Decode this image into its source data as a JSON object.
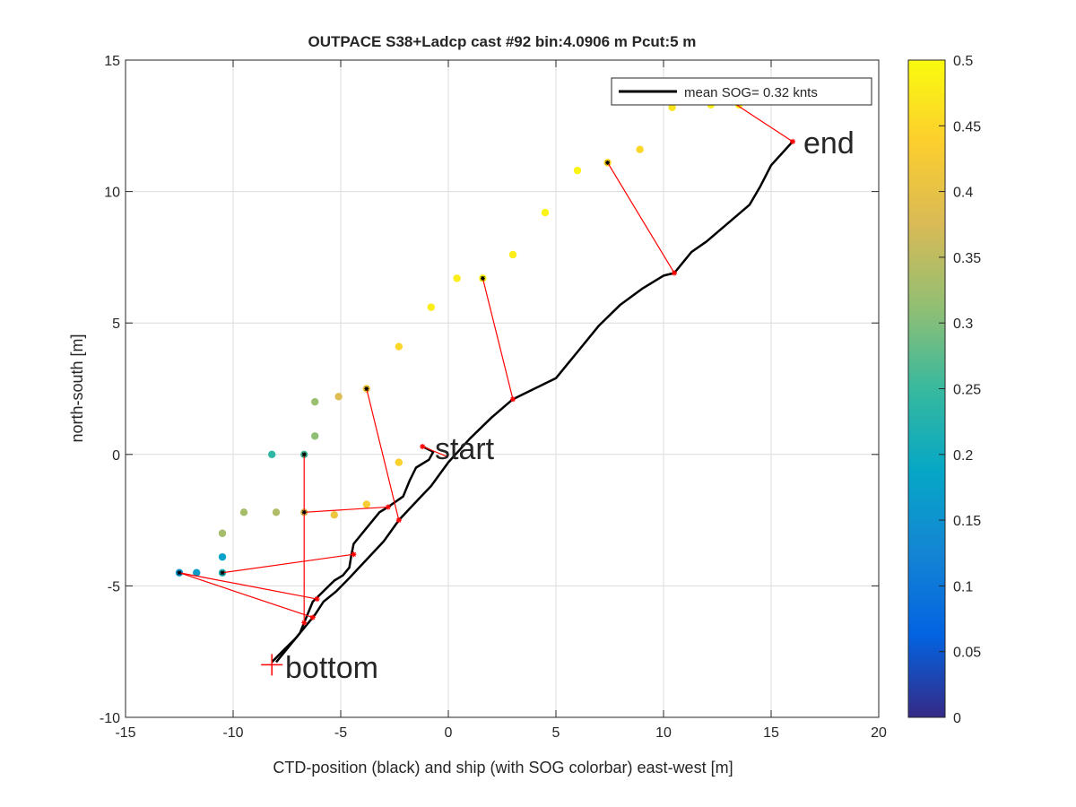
{
  "chart_data": {
    "type": "scatter",
    "title": "OUTPACE S38+Ladcp cast #92 bin:4.0906 m  Pcut:5 m",
    "xlabel": "CTD-position (black) and ship (with SOG colorbar) east-west [m]",
    "ylabel": "north-south [m]",
    "xlim": [
      -15,
      20
    ],
    "ylim": [
      -10,
      15
    ],
    "xticks": [
      "-15",
      "-10",
      "-5",
      "0",
      "5",
      "10",
      "15",
      "20"
    ],
    "yticks": [
      "-10",
      "-5",
      "0",
      "5",
      "10",
      "15"
    ],
    "grid": true,
    "legend": {
      "entries": [
        "mean SOG=  0.32 knts"
      ],
      "placement": "top-right"
    },
    "annotations": [
      {
        "text": "end",
        "x": 16.0,
        "y": 11.9
      },
      {
        "text": "start",
        "x": -1.2,
        "y": 0.3
      },
      {
        "text": "bottom",
        "x": -8.2,
        "y": -8.0
      }
    ],
    "colorbar": {
      "range": [
        0,
        0.5
      ],
      "ticks": [
        "0",
        "0.05",
        "0.1",
        "0.15",
        "0.2",
        "0.25",
        "0.3",
        "0.35",
        "0.4",
        "0.45",
        "0.5"
      ],
      "colormap": [
        "#352a87",
        "#0363e1",
        "#1485d4",
        "#06a7c6",
        "#38b99e",
        "#92bf73",
        "#d9ba56",
        "#fcce2e",
        "#f9fb0e"
      ]
    },
    "ctd_track": [
      [
        -8.2,
        -7.9
      ],
      [
        -7.6,
        -7.4
      ],
      [
        -7.1,
        -7.0
      ],
      [
        -6.7,
        -6.6
      ],
      [
        -6.2,
        -6.1
      ],
      [
        -5.8,
        -5.6
      ],
      [
        -5.2,
        -5.2
      ],
      [
        -4.6,
        -4.7
      ],
      [
        -3.8,
        -4.0
      ],
      [
        -3.0,
        -3.3
      ],
      [
        -2.3,
        -2.5
      ],
      [
        -1.5,
        -1.8
      ],
      [
        -0.8,
        -1.2
      ],
      [
        0.0,
        -0.3
      ],
      [
        1.0,
        0.6
      ],
      [
        2.0,
        1.4
      ],
      [
        3.0,
        2.1
      ],
      [
        4.0,
        2.5
      ],
      [
        5.0,
        2.9
      ],
      [
        6.0,
        3.9
      ],
      [
        7.0,
        4.9
      ],
      [
        8.0,
        5.7
      ],
      [
        9.0,
        6.3
      ],
      [
        10.0,
        6.8
      ],
      [
        10.5,
        6.9
      ],
      [
        11.3,
        7.7
      ],
      [
        12.0,
        8.1
      ],
      [
        13.0,
        8.8
      ],
      [
        14.0,
        9.5
      ],
      [
        14.5,
        10.2
      ],
      [
        15.0,
        11.0
      ],
      [
        16.0,
        11.9
      ]
    ],
    "ctd_inner_track": [
      [
        -8.0,
        -7.9
      ],
      [
        -7.4,
        -7.3
      ],
      [
        -6.9,
        -6.8
      ],
      [
        -6.6,
        -6.2
      ],
      [
        -6.3,
        -5.6
      ],
      [
        -5.8,
        -5.2
      ],
      [
        -5.3,
        -4.8
      ],
      [
        -4.9,
        -4.6
      ],
      [
        -4.6,
        -4.3
      ],
      [
        -4.5,
        -3.8
      ],
      [
        -4.4,
        -3.4
      ],
      [
        -3.9,
        -2.9
      ],
      [
        -3.2,
        -2.2
      ],
      [
        -2.8,
        -2.0
      ],
      [
        -2.1,
        -1.6
      ],
      [
        -1.8,
        -1.0
      ],
      [
        -1.5,
        -0.5
      ],
      [
        -0.9,
        -0.2
      ],
      [
        -0.7,
        0.1
      ],
      [
        -1.2,
        0.3
      ]
    ],
    "ship_points": [
      {
        "x": -12.5,
        "y": -4.5,
        "sog": 0.15
      },
      {
        "x": -11.7,
        "y": -4.5,
        "sog": 0.17
      },
      {
        "x": -10.5,
        "y": -4.5,
        "sog": 0.22
      },
      {
        "x": -10.5,
        "y": -3.9,
        "sog": 0.18
      },
      {
        "x": -10.5,
        "y": -3.0,
        "sog": 0.33
      },
      {
        "x": -9.5,
        "y": -2.2,
        "sog": 0.33
      },
      {
        "x": -8.0,
        "y": -2.2,
        "sog": 0.34
      },
      {
        "x": -8.2,
        "y": 0.0,
        "sog": 0.24
      },
      {
        "x": -6.7,
        "y": 0.0,
        "sog": 0.26
      },
      {
        "x": -6.7,
        "y": -2.2,
        "sog": 0.38
      },
      {
        "x": -5.3,
        "y": -2.3,
        "sog": 0.41
      },
      {
        "x": -6.2,
        "y": 0.7,
        "sog": 0.31
      },
      {
        "x": -6.2,
        "y": 2.0,
        "sog": 0.32
      },
      {
        "x": -5.1,
        "y": 2.2,
        "sog": 0.38
      },
      {
        "x": -3.8,
        "y": 2.5,
        "sog": 0.42
      },
      {
        "x": -3.8,
        "y": -1.9,
        "sog": 0.43
      },
      {
        "x": -2.3,
        "y": -0.3,
        "sog": 0.44
      },
      {
        "x": -2.3,
        "y": 4.1,
        "sog": 0.45
      },
      {
        "x": -0.8,
        "y": 5.6,
        "sog": 0.48
      },
      {
        "x": 0.4,
        "y": 6.7,
        "sog": 0.48
      },
      {
        "x": 1.6,
        "y": 6.7,
        "sog": 0.49
      },
      {
        "x": 3.0,
        "y": 7.6,
        "sog": 0.48
      },
      {
        "x": 4.5,
        "y": 9.2,
        "sog": 0.49
      },
      {
        "x": 6.0,
        "y": 10.8,
        "sog": 0.49
      },
      {
        "x": 7.4,
        "y": 11.1,
        "sog": 0.45
      },
      {
        "x": 8.9,
        "y": 11.6,
        "sog": 0.45
      },
      {
        "x": 10.4,
        "y": 13.2,
        "sog": 0.47
      },
      {
        "x": 12.2,
        "y": 13.3,
        "sog": 0.48
      },
      {
        "x": 13.5,
        "y": 13.3,
        "sog": 0.5
      }
    ],
    "ship_markers": [
      [
        -12.5,
        -4.5
      ],
      [
        -10.5,
        -4.5
      ],
      [
        -6.7,
        0.0
      ],
      [
        -6.7,
        -2.2
      ],
      [
        -3.8,
        2.5
      ],
      [
        1.6,
        6.7
      ],
      [
        7.4,
        11.1
      ]
    ],
    "connections": [
      {
        "ship": [
          -12.5,
          -4.5
        ],
        "ctd": [
          -6.1,
          -5.5
        ]
      },
      {
        "ship": [
          -12.5,
          -4.5
        ],
        "ctd": [
          -6.3,
          -6.2
        ]
      },
      {
        "ship": [
          -10.5,
          -4.5
        ],
        "ctd": [
          -4.4,
          -3.8
        ]
      },
      {
        "ship": [
          -6.7,
          -2.2
        ],
        "ctd": [
          -2.8,
          -2.0
        ]
      },
      {
        "ship": [
          -6.7,
          0.0
        ],
        "ctd": [
          -6.7,
          -6.4
        ]
      },
      {
        "ship": [
          -3.8,
          2.5
        ],
        "ctd": [
          -2.3,
          -2.5
        ]
      },
      {
        "ship": [
          1.6,
          6.7
        ],
        "ctd": [
          3.0,
          2.1
        ]
      },
      {
        "ship": [
          7.4,
          11.1
        ],
        "ctd": [
          10.5,
          6.9
        ]
      },
      {
        "ship": [
          13.2,
          13.4
        ],
        "ctd": [
          16.0,
          11.9
        ]
      },
      {
        "ship": [
          -1.2,
          0.3
        ],
        "ctd": [
          0.0,
          -0.1
        ]
      }
    ],
    "ctd_markers": [
      [
        -6.1,
        -5.5
      ],
      [
        -6.3,
        -6.2
      ],
      [
        -4.4,
        -3.8
      ],
      [
        -2.8,
        -2.0
      ],
      [
        -6.7,
        -6.4
      ],
      [
        -2.3,
        -2.5
      ],
      [
        3.0,
        2.1
      ],
      [
        10.5,
        6.9
      ],
      [
        16.0,
        11.9
      ],
      [
        -1.2,
        0.3
      ]
    ],
    "bottom_marker": [
      -8.2,
      -8.0
    ]
  }
}
